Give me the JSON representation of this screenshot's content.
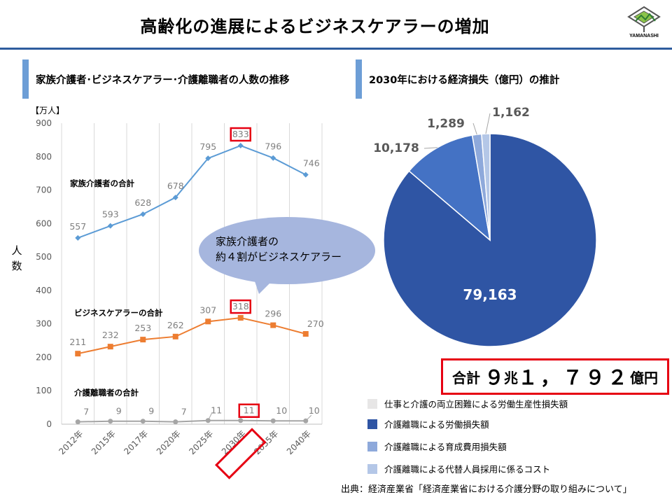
{
  "header": {
    "title": "高齢化の進展によるビジネスケアラーの増加",
    "logo_text": "YAMANASHI"
  },
  "left_section": {
    "title": "家族介護者･ビジネスケアラー･介護離職者の人数の推移"
  },
  "right_section": {
    "title": "2030年における経済損失（億円）の推計"
  },
  "callout": {
    "line1": "家族介護者の",
    "line2": "約４割がビジネスケアラー"
  },
  "total": {
    "prefix": "合計",
    "n1": "９",
    "u1": "兆",
    "n2": "１，７９２",
    "u2": "億円"
  },
  "source": "出典：経済産業省「経済産業省における介護分野の取り組みについて」",
  "colors": {
    "family": "#5B9BD5",
    "business": "#ED7D31",
    "resign": "#A5A5A5",
    "highlight": "#E60012",
    "pie_main": "#2F55A4",
    "pie_second": "#4472C4",
    "pie_third": "#8EA9DB",
    "pie_fourth": "#B4C7E7",
    "pie_fifth": "#E7E6E6",
    "callout": "#A6B6DE"
  },
  "chart_data": [
    {
      "type": "line",
      "unit_label": "【万人】",
      "ylabel": "人数",
      "ylim": [
        0,
        900
      ],
      "yticks": [
        0,
        100,
        200,
        300,
        400,
        500,
        600,
        700,
        800,
        900
      ],
      "grid": "vertical",
      "categories": [
        "2012年",
        "2015年",
        "2017年",
        "2020年",
        "2025年",
        "2030年",
        "2035年",
        "2040年"
      ],
      "highlight_category": "2030年",
      "series": [
        {
          "name": "家族介護者の合計",
          "values": [
            557,
            593,
            628,
            678,
            795,
            833,
            796,
            746
          ]
        },
        {
          "name": "ビジネスケアラーの合計",
          "values": [
            211,
            232,
            253,
            262,
            307,
            318,
            296,
            270
          ]
        },
        {
          "name": "介護離職者の合計",
          "values": [
            7,
            9,
            9,
            7,
            11,
            11,
            10,
            10
          ]
        }
      ]
    },
    {
      "type": "pie",
      "labels": [
        "介護離職による労働損失額",
        "介護離職による育成費用損失額",
        "介護離職による代替人員採用に係るコスト",
        "仕事と介護の両立困難による労働生産性損失額"
      ],
      "values": [
        79163,
        10178,
        1289,
        1162
      ],
      "value_labels": [
        "79,163",
        "10,178",
        "1,289",
        "1,162"
      ],
      "legend": [
        "仕事と介護の両立困難による労働生産性損失額",
        "介護離職による労働損失額",
        "介護離職による育成費用損失額",
        "介護離職による代替人員採用に係るコスト"
      ]
    }
  ]
}
